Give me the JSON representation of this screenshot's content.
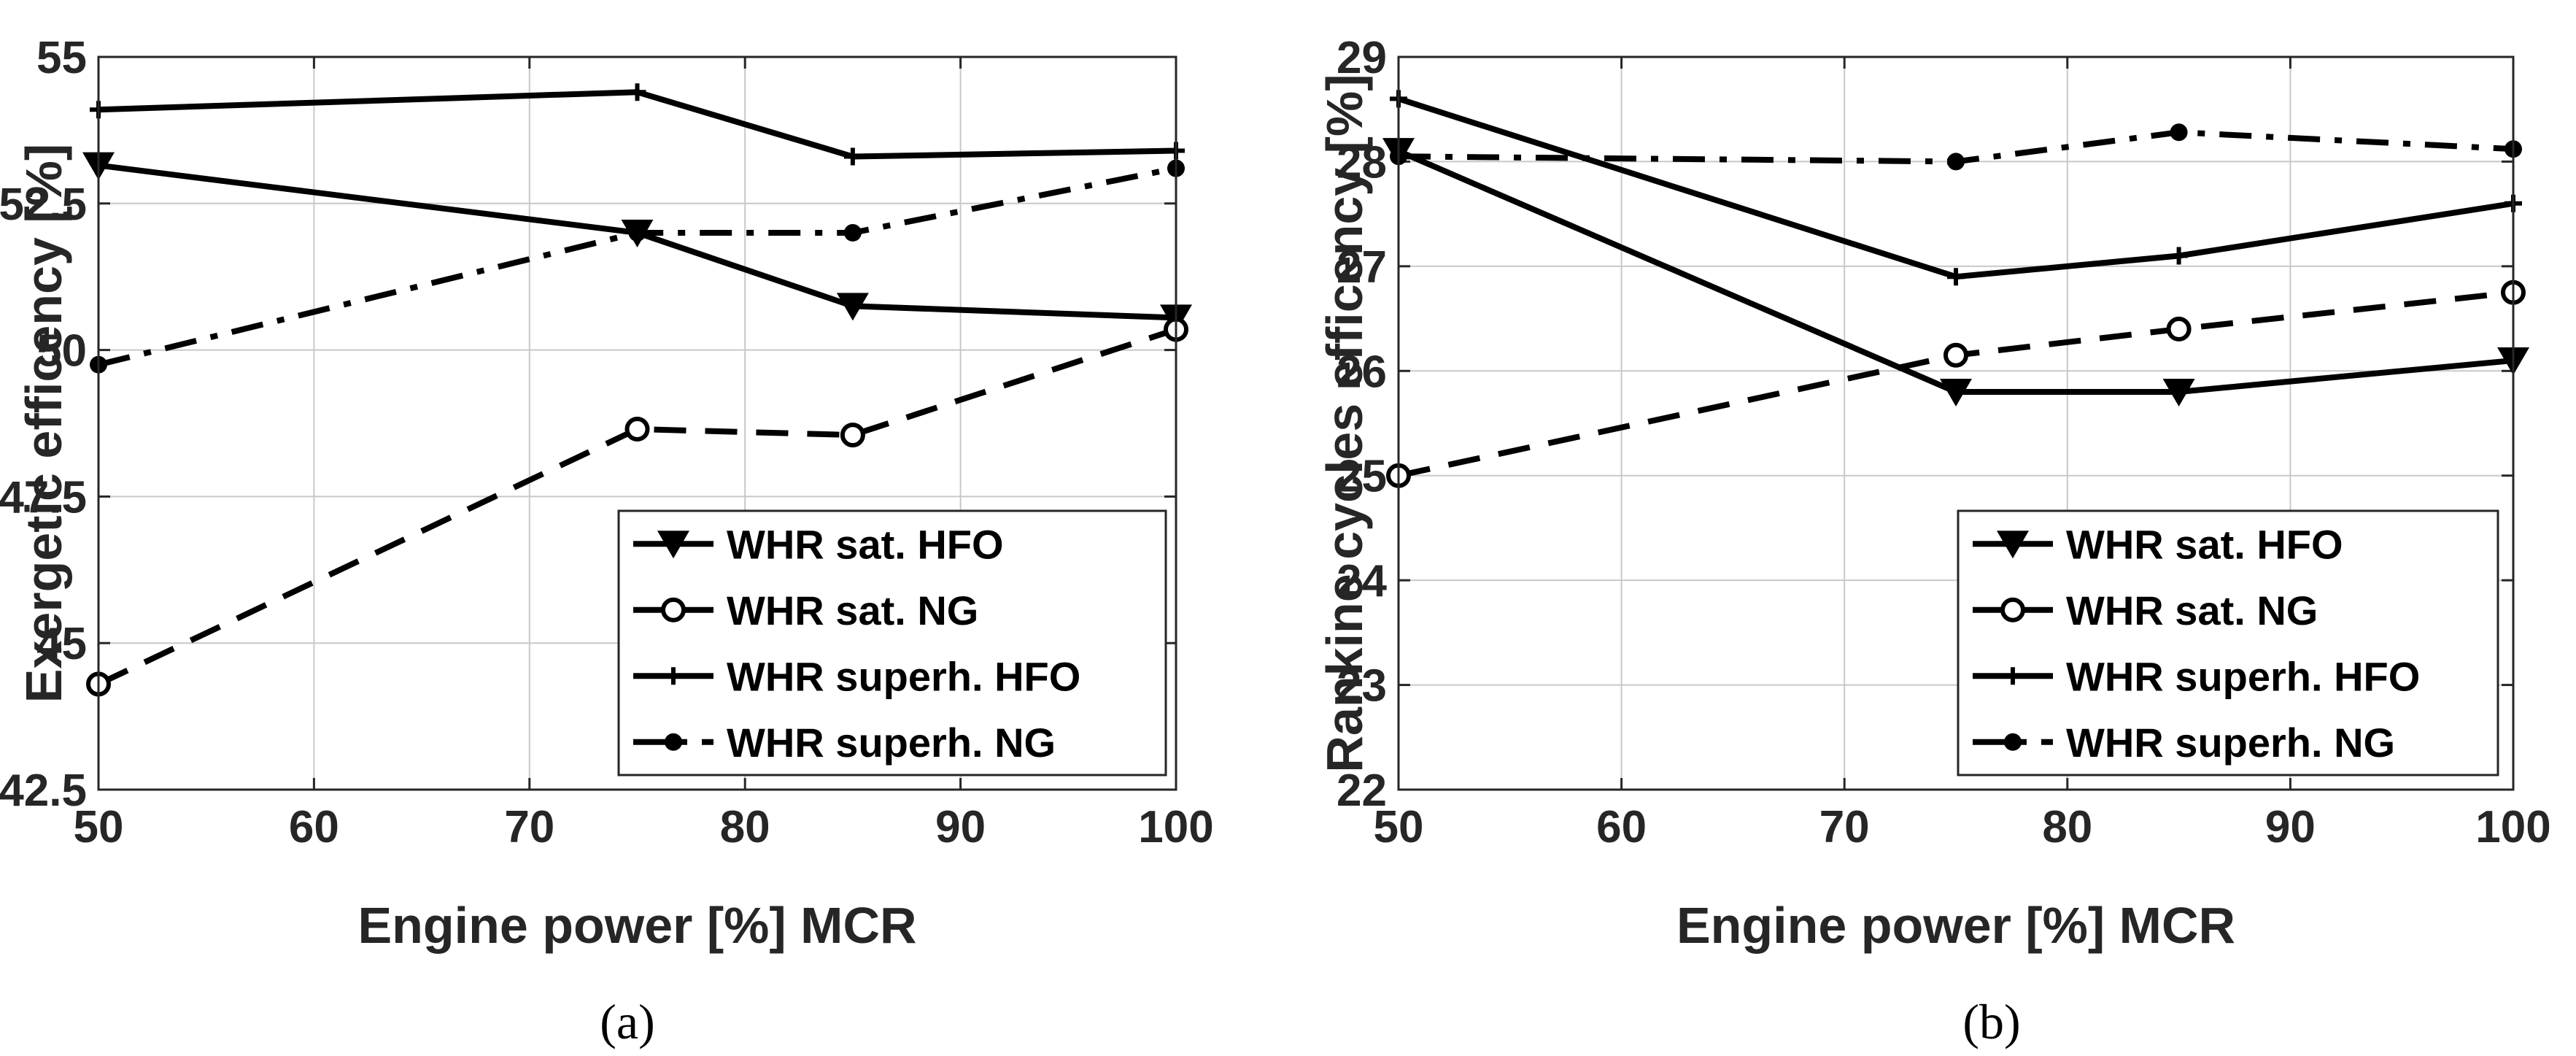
{
  "chart_data": [
    {
      "type": "line",
      "caption": "(a)",
      "xlabel": "Engine power [%] MCR",
      "ylabel": "Exergetic efficency [%]",
      "xlim": [
        50,
        100
      ],
      "ylim": [
        42.5,
        55
      ],
      "xticks": [
        50,
        60,
        70,
        80,
        90,
        100
      ],
      "xtick_labels": [
        "50",
        "60",
        "70",
        "80",
        "90",
        "100"
      ],
      "yticks": [
        42.5,
        45,
        47.5,
        50,
        52.5,
        55
      ],
      "ytick_labels": [
        "42.5",
        "45",
        "47.5",
        "50",
        "52.5",
        "55"
      ],
      "grid": true,
      "legend_position": "bottom-right",
      "x": [
        50,
        75,
        85,
        100
      ],
      "series": [
        {
          "name": "WHR sat. HFO",
          "values": [
            53.15,
            52.0,
            50.75,
            50.55
          ],
          "line": "solid",
          "marker": "triangle-down"
        },
        {
          "name": "WHR sat. NG",
          "values": [
            44.3,
            48.65,
            48.55,
            50.35
          ],
          "line": "dashed",
          "marker": "open-circle"
        },
        {
          "name": "WHR superh. HFO",
          "values": [
            54.1,
            54.4,
            53.3,
            53.4
          ],
          "line": "solid",
          "marker": "plus"
        },
        {
          "name": "WHR superh. NG",
          "values": [
            49.75,
            52.0,
            52.0,
            53.1
          ],
          "line": "dashdot",
          "marker": "filled-dot"
        }
      ]
    },
    {
      "type": "line",
      "caption": "(b)",
      "xlabel": "Engine power [%] MCR",
      "ylabel": "Rankine cycles efficency [%]",
      "xlim": [
        50,
        100
      ],
      "ylim": [
        22,
        29
      ],
      "xticks": [
        50,
        60,
        70,
        80,
        90,
        100
      ],
      "xtick_labels": [
        "50",
        "60",
        "70",
        "80",
        "90",
        "100"
      ],
      "yticks": [
        22,
        23,
        24,
        25,
        26,
        27,
        28,
        29
      ],
      "ytick_labels": [
        "22",
        "23",
        "24",
        "25",
        "26",
        "27",
        "28",
        "29"
      ],
      "grid": true,
      "legend_position": "bottom-right",
      "x": [
        50,
        75,
        85,
        100
      ],
      "series": [
        {
          "name": "WHR sat. HFO",
          "values": [
            28.1,
            25.8,
            25.8,
            26.1
          ],
          "line": "solid",
          "marker": "triangle-down"
        },
        {
          "name": "WHR sat. NG",
          "values": [
            25.0,
            26.15,
            26.4,
            26.75
          ],
          "line": "dashed",
          "marker": "open-circle"
        },
        {
          "name": "WHR superh. HFO",
          "values": [
            28.6,
            26.9,
            27.1,
            27.6
          ],
          "line": "solid",
          "marker": "plus"
        },
        {
          "name": "WHR superh. NG",
          "values": [
            28.05,
            28.0,
            28.28,
            28.12
          ],
          "line": "dashdot",
          "marker": "filled-dot"
        }
      ]
    }
  ]
}
